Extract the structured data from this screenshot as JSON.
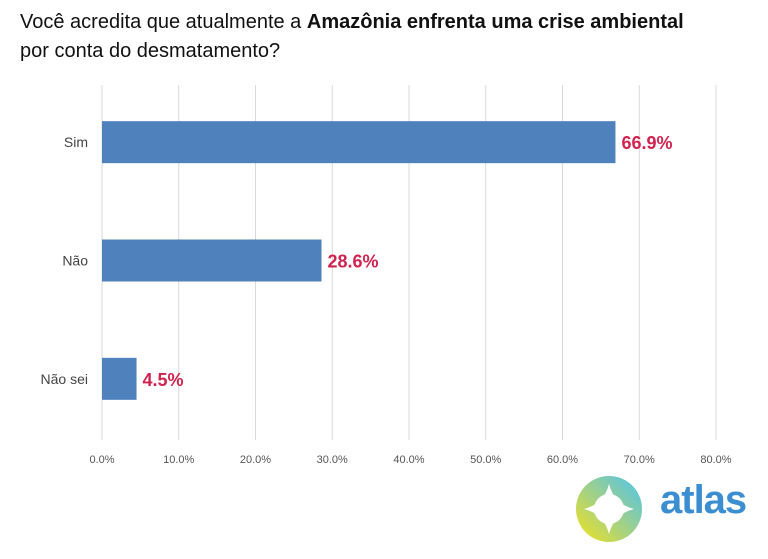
{
  "chart_data": {
    "type": "bar",
    "orientation": "horizontal",
    "title_parts": [
      "Você acredita que atualmente a ",
      "Amazônia enfrenta uma crise ambiental",
      "por conta do desmatamento?"
    ],
    "categories": [
      "Sim",
      "Não",
      "Não sei"
    ],
    "values": [
      66.9,
      28.6,
      4.5
    ],
    "data_labels": [
      "66.9%",
      "28.6%",
      "4.5%"
    ],
    "xlim": [
      0,
      80
    ],
    "xticks": [
      "0.0%",
      "10.0%",
      "20.0%",
      "30.0%",
      "40.0%",
      "50.0%",
      "60.0%",
      "70.0%",
      "80.0%"
    ],
    "grid": true,
    "bar_color": "#4f81bd",
    "label_color": "#d0234f"
  },
  "logo": {
    "text": "atlas"
  }
}
